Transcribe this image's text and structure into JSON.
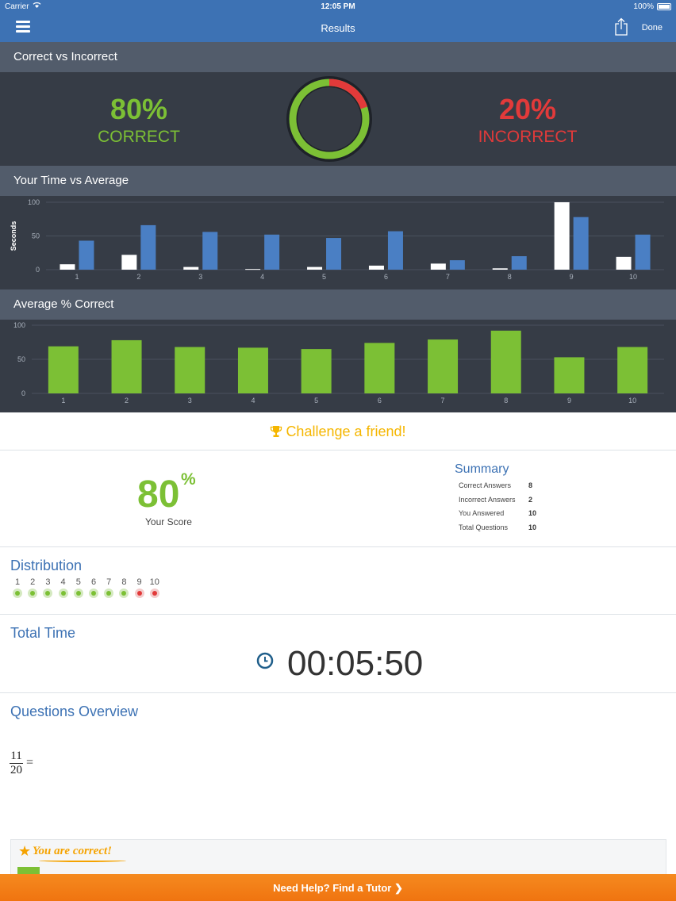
{
  "status_bar": {
    "carrier": "Carrier",
    "time": "12:05 PM",
    "battery": "100%"
  },
  "nav": {
    "title": "Results",
    "done_label": "Done"
  },
  "correct_vs_incorrect": {
    "header": "Correct vs Incorrect",
    "correct_pct": "80%",
    "correct_label": "CORRECT",
    "incorrect_pct": "20%",
    "incorrect_label": "INCORRECT",
    "donut_fraction_correct": 0.8,
    "colors": {
      "correct": "#7cc035",
      "incorrect": "#e23a3a"
    }
  },
  "time_vs_average": {
    "header": "Your Time vs Average"
  },
  "average_correct": {
    "header": "Average % Correct"
  },
  "chart_data": [
    {
      "type": "bar",
      "categories": [
        "1",
        "2",
        "3",
        "4",
        "5",
        "6",
        "7",
        "8",
        "9",
        "10"
      ],
      "ylabel": "Seconds",
      "ylim": [
        0,
        100
      ],
      "yticks": [
        "0",
        "50",
        "100"
      ],
      "series": [
        {
          "values": [
            8,
            22,
            4,
            1,
            4,
            6,
            9,
            2,
            100,
            19
          ],
          "color": "#ffffff"
        },
        {
          "values": [
            43,
            66,
            56,
            52,
            47,
            57,
            14,
            20,
            78,
            52
          ],
          "color": "#4a7fc4"
        }
      ]
    },
    {
      "type": "bar",
      "categories": [
        "1",
        "2",
        "3",
        "4",
        "5",
        "6",
        "7",
        "8",
        "9",
        "10"
      ],
      "ylim": [
        0,
        100
      ],
      "yticks": [
        "0",
        "50",
        "100"
      ],
      "series": [
        {
          "values": [
            69,
            78,
            68,
            67,
            65,
            74,
            79,
            92,
            53,
            68
          ],
          "color": "#7cc035"
        }
      ]
    }
  ],
  "challenge": {
    "label": "Challenge a friend!"
  },
  "score": {
    "value": "80",
    "unit": "%",
    "label": "Your Score"
  },
  "summary": {
    "title": "Summary",
    "rows": [
      {
        "label": "Correct Answers",
        "value": "8"
      },
      {
        "label": "Incorrect Answers",
        "value": "2"
      },
      {
        "label": "You Answered",
        "value": "10"
      },
      {
        "label": "Total Questions",
        "value": "10"
      }
    ]
  },
  "distribution": {
    "title": "Distribution",
    "items": [
      {
        "n": "1",
        "correct": true
      },
      {
        "n": "2",
        "correct": true
      },
      {
        "n": "3",
        "correct": true
      },
      {
        "n": "4",
        "correct": true
      },
      {
        "n": "5",
        "correct": true
      },
      {
        "n": "6",
        "correct": true
      },
      {
        "n": "7",
        "correct": true
      },
      {
        "n": "8",
        "correct": true
      },
      {
        "n": "9",
        "correct": false
      },
      {
        "n": "10",
        "correct": false
      }
    ]
  },
  "total_time": {
    "title": "Total Time",
    "value": "00:05:50"
  },
  "questions_overview": {
    "title": "Questions Overview",
    "fraction_num": "11",
    "fraction_den": "20",
    "equals": "="
  },
  "answer_card": {
    "text": "You are correct!"
  },
  "help_bar": {
    "label": "Need Help?  Find a Tutor ❯"
  }
}
